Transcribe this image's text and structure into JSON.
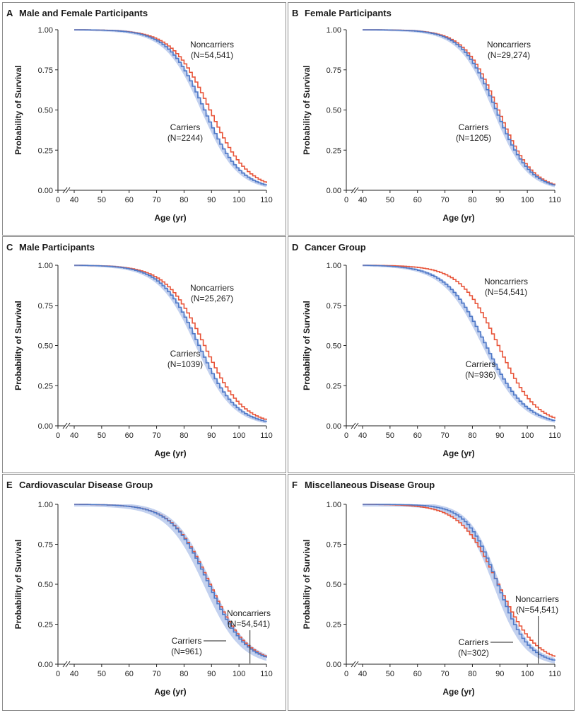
{
  "colors": {
    "noncarriers": "#e8553a",
    "carriers": "#4f79c7",
    "band": "#b9c9ec"
  },
  "axes": {
    "x_label": "Age (yr)",
    "y_label": "Probability of Survival",
    "x_ticks": [
      "0",
      "40",
      "50",
      "60",
      "70",
      "80",
      "90",
      "100",
      "110"
    ],
    "y_ticks": [
      "0.00",
      "0.25",
      "0.50",
      "0.75",
      "1.00"
    ]
  },
  "chart_data": [
    {
      "type": "line",
      "panel": "A",
      "title": "Male and Female Participants",
      "xlabel": "Age (yr)",
      "ylabel": "Probability of Survival",
      "xlim": [
        40,
        110
      ],
      "ylim": [
        0,
        1
      ],
      "labels": {
        "noncarriers": [
          "Noncarriers",
          "(N=54,541)"
        ],
        "carriers": [
          "Carriers",
          "(N=2244)"
        ]
      },
      "series": [
        {
          "name": "Noncarriers",
          "median_age": 89,
          "scale": 6.9
        },
        {
          "name": "Carriers",
          "median_age": 87,
          "scale": 6.6
        }
      ]
    },
    {
      "type": "line",
      "panel": "B",
      "title": "Female Participants",
      "xlabel": "Age (yr)",
      "ylabel": "Probability of Survival",
      "xlim": [
        40,
        110
      ],
      "ylim": [
        0,
        1
      ],
      "labels": {
        "noncarriers": [
          "Noncarriers",
          "(N=29,274)"
        ],
        "carriers": [
          "Carriers",
          "(N=1205)"
        ]
      },
      "series": [
        {
          "name": "Noncarriers",
          "median_age": 89,
          "scale": 6.2
        },
        {
          "name": "Carriers",
          "median_age": 88.2,
          "scale": 6.2
        }
      ]
    },
    {
      "type": "line",
      "panel": "C",
      "title": "Male Participants",
      "xlabel": "Age (yr)",
      "ylabel": "Probability of Survival",
      "xlim": [
        40,
        110
      ],
      "ylim": [
        0,
        1
      ],
      "labels": {
        "noncarriers": [
          "Noncarriers",
          "(N=25,267)"
        ],
        "carriers": [
          "Carriers",
          "(N=1039)"
        ]
      },
      "series": [
        {
          "name": "Noncarriers",
          "median_age": 87,
          "scale": 7.0
        },
        {
          "name": "Carriers",
          "median_age": 85,
          "scale": 6.8
        }
      ]
    },
    {
      "type": "line",
      "panel": "D",
      "title": "Cancer Group",
      "xlabel": "Age (yr)",
      "ylabel": "Probability of Survival",
      "xlim": [
        40,
        110
      ],
      "ylim": [
        0,
        1
      ],
      "labels": {
        "noncarriers": [
          "Noncarriers",
          "(N=54,541)"
        ],
        "carriers": [
          "Carriers",
          "(N=936)"
        ]
      },
      "series": [
        {
          "name": "Noncarriers",
          "median_age": 89,
          "scale": 6.9
        },
        {
          "name": "Carriers",
          "median_age": 84.5,
          "scale": 7.3
        }
      ]
    },
    {
      "type": "line",
      "panel": "E",
      "title": "Cardiovascular Disease Group",
      "xlabel": "Age (yr)",
      "ylabel": "Probability of Survival",
      "xlim": [
        40,
        110
      ],
      "ylim": [
        0,
        1
      ],
      "labels": {
        "noncarriers": [
          "Noncarriers",
          "(N=54,541)"
        ],
        "carriers": [
          "Carriers",
          "(N=961)"
        ]
      },
      "series": [
        {
          "name": "Noncarriers",
          "median_age": 89,
          "scale": 6.9
        },
        {
          "name": "Carriers",
          "median_age": 88.6,
          "scale": 6.8
        }
      ]
    },
    {
      "type": "line",
      "panel": "F",
      "title": "Miscellaneous Disease Group",
      "xlabel": "Age (yr)",
      "ylabel": "Probability of Survival",
      "xlim": [
        40,
        110
      ],
      "ylim": [
        0,
        1
      ],
      "labels": {
        "noncarriers": [
          "Noncarriers",
          "(N=54,541)"
        ],
        "carriers": [
          "Carriers",
          "(N=302)"
        ]
      },
      "series": [
        {
          "name": "Noncarriers",
          "median_age": 89,
          "scale": 6.9
        },
        {
          "name": "Carriers",
          "median_age": 88.8,
          "scale": 5.6
        }
      ]
    }
  ]
}
